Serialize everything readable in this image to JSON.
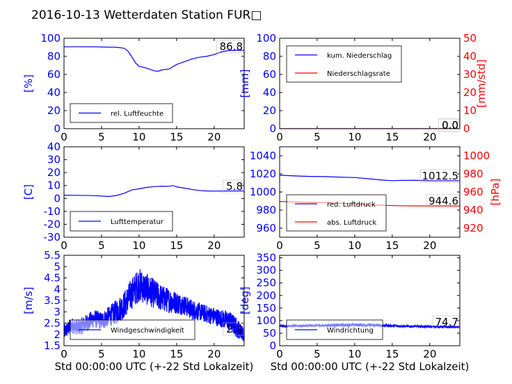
{
  "figure": {
    "title": "2016-10-13 Wetterdaten Station FUR□",
    "xlabel": "Std 00:00:00 UTC (+-22 Std Lokalzeit)"
  },
  "colors": {
    "primary": "#0000ff",
    "secondary": "#ff0000",
    "text": "#000000"
  },
  "chart_data": [
    {
      "id": "humidity",
      "type": "line",
      "ylabel": "[%]",
      "xlim": [
        0,
        24
      ],
      "ylim": [
        0,
        100
      ],
      "xticks": [
        0,
        5,
        10,
        15,
        20
      ],
      "yticks": [
        0,
        20,
        40,
        60,
        80,
        100
      ],
      "legend": "lower-left",
      "last_value": "86.8",
      "series": [
        {
          "name": "rel. Luftfeuchte",
          "axis": "left",
          "color": "#0000ff",
          "x": [
            0,
            2,
            4,
            7,
            8,
            8.5,
            9,
            9.5,
            10,
            11,
            12,
            12.5,
            13,
            14,
            15,
            16,
            17,
            18,
            19,
            20,
            21,
            22,
            24
          ],
          "y": [
            90.5,
            90.6,
            90.5,
            90,
            89,
            86,
            80,
            73,
            69,
            67,
            64,
            63.5,
            65,
            66,
            71,
            74,
            77,
            79,
            80,
            82,
            85,
            86.5,
            86.8
          ]
        }
      ]
    },
    {
      "id": "precip",
      "type": "line",
      "ylabel": "[mm]",
      "y2label": "[mm/std]",
      "xlim": [
        0,
        24
      ],
      "ylim": [
        0,
        100
      ],
      "y2lim": [
        0,
        50
      ],
      "xticks": [
        0,
        5,
        10,
        15,
        20
      ],
      "yticks": [
        0,
        20,
        40,
        60,
        80,
        100
      ],
      "y2ticks": [
        0,
        10,
        20,
        30,
        40,
        50
      ],
      "legend": "upper-left",
      "last_value": "0.0",
      "last_value2": "0.0",
      "series": [
        {
          "name": "kum. Niederschlag",
          "axis": "left",
          "color": "#0000ff",
          "x": [
            0,
            24
          ],
          "y": [
            0,
            0
          ]
        },
        {
          "name": "Niederschlagsrate",
          "axis": "right",
          "color": "#ff0000",
          "x": [
            0,
            24
          ],
          "y": [
            0,
            0
          ]
        }
      ]
    },
    {
      "id": "temperature",
      "type": "line",
      "ylabel": "[C]",
      "xlim": [
        0,
        24
      ],
      "ylim": [
        -30,
        40
      ],
      "xticks": [
        0,
        5,
        10,
        15,
        20
      ],
      "yticks": [
        -30,
        -20,
        -10,
        0,
        10,
        20,
        30,
        40
      ],
      "legend": "lower-left",
      "last_value": "5.8",
      "series": [
        {
          "name": "Lufttemperatur",
          "axis": "left",
          "color": "#0000ff",
          "x": [
            0,
            2,
            4,
            5,
            6,
            7,
            8,
            9,
            10,
            11,
            12,
            13,
            14,
            14.5,
            15,
            16,
            17,
            18,
            19,
            20,
            22,
            24
          ],
          "y": [
            2.5,
            2.4,
            2.2,
            1.8,
            1.5,
            2.3,
            4,
            6.5,
            7.5,
            8.5,
            9.2,
            9.5,
            9.4,
            10,
            9,
            8,
            7,
            6.2,
            5.8,
            5.7,
            5.8,
            5.8
          ]
        }
      ]
    },
    {
      "id": "pressure",
      "type": "line",
      "ylabel": "",
      "y2label": "[hPa]",
      "xlim": [
        0,
        24
      ],
      "ylim": [
        950,
        1050
      ],
      "y2lim": [
        910,
        1010
      ],
      "xticks": [
        0,
        5,
        10,
        15,
        20
      ],
      "yticks": [
        960,
        980,
        1000,
        1020,
        1040
      ],
      "y2ticks": [
        920,
        940,
        960,
        980,
        1000
      ],
      "legend": "lower-left",
      "last_value": "1012.5",
      "last_value2": "944.6",
      "series": [
        {
          "name": "red. Luftdruck",
          "axis": "left",
          "color": "#0000ff",
          "x": [
            0,
            2,
            4,
            6,
            8,
            10,
            12,
            14,
            15,
            16,
            18,
            20,
            24
          ],
          "y": [
            1018.5,
            1017.8,
            1017.2,
            1017,
            1016.5,
            1016,
            1014.5,
            1013,
            1012.5,
            1012.8,
            1013,
            1012.5,
            1012.5
          ]
        },
        {
          "name": "abs. Luftdruck",
          "axis": "right",
          "color": "#ff0000",
          "x": [
            0,
            2,
            4,
            6,
            8,
            10,
            12,
            14,
            16,
            18,
            20,
            24
          ],
          "y": [
            949.5,
            949,
            948.5,
            948.2,
            947.5,
            946.8,
            945.8,
            945.2,
            944.8,
            944.6,
            944.6,
            944.6
          ]
        }
      ]
    },
    {
      "id": "wind-speed",
      "type": "line",
      "ylabel": "[m/s]",
      "xlim": [
        0,
        24
      ],
      "ylim": [
        1.5,
        5.5
      ],
      "xticks": [
        0,
        5,
        10,
        15,
        20
      ],
      "yticks": [
        1.5,
        2.0,
        2.5,
        3.0,
        3.5,
        4.0,
        4.5,
        5.0,
        5.5
      ],
      "legend": "lower-left",
      "last_value": "2.0",
      "series": [
        {
          "name": "Windgeschwindigkeit",
          "axis": "left",
          "color": "#0000ff",
          "x": [
            0,
            1,
            2,
            3,
            4,
            5,
            6,
            7,
            8,
            9,
            10,
            11,
            12,
            13,
            14,
            15,
            16,
            17,
            18,
            19,
            20,
            21,
            22,
            23,
            24
          ],
          "y": [
            2.1,
            2.4,
            2.3,
            2.5,
            2.7,
            2.6,
            2.8,
            3.0,
            3.3,
            3.8,
            4.2,
            4.0,
            3.8,
            3.6,
            3.5,
            3.4,
            3.3,
            3.1,
            3.0,
            2.9,
            2.8,
            2.7,
            2.6,
            2.3,
            2.0
          ],
          "noise": [
            0.35,
            0.35,
            0.35,
            0.4,
            0.4,
            0.4,
            0.45,
            0.55,
            0.6,
            0.7,
            0.75,
            0.7,
            0.65,
            0.6,
            0.55,
            0.5,
            0.45,
            0.45,
            0.4,
            0.4,
            0.4,
            0.4,
            0.45,
            0.45,
            0.3
          ]
        }
      ]
    },
    {
      "id": "wind-direction",
      "type": "line",
      "ylabel": "[deg]",
      "xlim": [
        0,
        24
      ],
      "ylim": [
        0,
        360
      ],
      "xticks": [
        0,
        5,
        10,
        15,
        20
      ],
      "yticks": [
        0,
        50,
        100,
        150,
        200,
        250,
        300,
        350
      ],
      "legend": "lower-left",
      "last_value": "74.7",
      "series": [
        {
          "name": "Windrichtung",
          "axis": "left",
          "color": "#0000ff",
          "x": [
            0,
            4,
            8,
            10,
            12,
            14,
            16,
            18,
            20,
            22,
            24
          ],
          "y": [
            78,
            80,
            82,
            83,
            82,
            80,
            78,
            77,
            76,
            75,
            74.7
          ],
          "noise": [
            4,
            5,
            6,
            6,
            6,
            5,
            4,
            4,
            4,
            4,
            3
          ]
        }
      ]
    }
  ]
}
